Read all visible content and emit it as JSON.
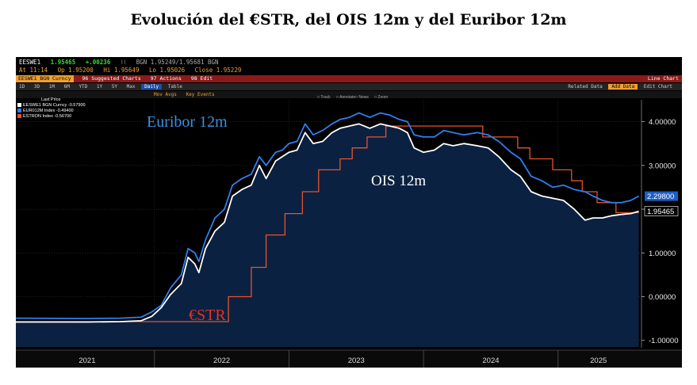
{
  "page": {
    "title": "Evolución del €STR, del OIS 12m y del Euribor 12m"
  },
  "terminal": {
    "ticker": "EESWE1",
    "last": "1.95465",
    "change": "+.00236",
    "bid_ask": "BGN 1.95249/1.95681 BGN",
    "at": "At 11:14",
    "open": "Op 1.95200",
    "high": "Hi 1.95649",
    "low": "Lo 1.95026",
    "close": "Close 1.95229",
    "menu_security": "EESWE1 BGN Curncy",
    "menu_suggested": "96 Suggested Charts",
    "menu_actions": "97 Actions",
    "menu_edit": "98 Edit",
    "menu_right": "Line Chart",
    "toolbar_periods": [
      "1D",
      "3D",
      "1M",
      "6M",
      "YTD",
      "1Y",
      "5Y",
      "Max",
      "Daily",
      "Table"
    ],
    "toolbar_right": [
      "Related Data",
      "Add Data",
      "Edit Chart"
    ],
    "toolbar2": [
      "Mov Avgs",
      "Key Events"
    ],
    "tools": [
      "Track",
      "Annotate",
      "News",
      "Zoom"
    ],
    "legend_header": "Last Price",
    "legend": [
      {
        "label": "EESWE1 BGN Curncy",
        "value": "-0.57900",
        "color": "#ffffff"
      },
      {
        "label": "EUR012M Index",
        "value": "-0.49400",
        "color": "#2e7ff0"
      },
      {
        "label": "ESTRON Index",
        "value": "-0.56700",
        "color": "#e8532b"
      }
    ]
  },
  "chart_data": {
    "type": "line",
    "x_ticks": [
      "2021",
      "2022",
      "2023",
      "2024",
      "2025"
    ],
    "y_ticks": [
      "4.00000",
      "3.00000",
      "2.00000",
      "1.00000",
      "0.00000",
      "-1.00000"
    ],
    "ylim": [
      -1.15,
      4.5
    ],
    "xlim": [
      2020.97,
      2025.62
    ],
    "annotations": [
      {
        "text": "Euribor 12m",
        "color": "#3d8fe0"
      },
      {
        "text": "OIS 12m",
        "color": "#ffffff"
      },
      {
        "text": "€STR",
        "color": "#e83020"
      }
    ],
    "last_values": [
      {
        "series": "EUR012M Index",
        "label": "2.29800",
        "value": 2.298,
        "color": "#2e7ff0"
      },
      {
        "series": "EESWE1 BGN Curncy",
        "label": "1.95465",
        "value": 1.95465,
        "color": "#ffffff"
      }
    ],
    "series": [
      {
        "name": "ESTRON Index",
        "color": "#e8532b",
        "points": [
          [
            2020.97,
            -0.57
          ],
          [
            2022.55,
            -0.57
          ],
          [
            2022.55,
            0.0
          ],
          [
            2022.72,
            0.0
          ],
          [
            2022.72,
            0.67
          ],
          [
            2022.83,
            0.67
          ],
          [
            2022.83,
            1.41
          ],
          [
            2022.97,
            1.41
          ],
          [
            2022.97,
            1.9
          ],
          [
            2023.1,
            1.9
          ],
          [
            2023.1,
            2.4
          ],
          [
            2023.22,
            2.4
          ],
          [
            2023.22,
            2.9
          ],
          [
            2023.38,
            2.9
          ],
          [
            2023.38,
            3.15
          ],
          [
            2023.47,
            3.15
          ],
          [
            2023.47,
            3.4
          ],
          [
            2023.58,
            3.4
          ],
          [
            2023.58,
            3.65
          ],
          [
            2023.72,
            3.65
          ],
          [
            2023.72,
            3.9
          ],
          [
            2024.44,
            3.9
          ],
          [
            2024.44,
            3.65
          ],
          [
            2024.7,
            3.65
          ],
          [
            2024.7,
            3.4
          ],
          [
            2024.79,
            3.4
          ],
          [
            2024.79,
            3.15
          ],
          [
            2024.96,
            3.15
          ],
          [
            2024.96,
            2.9
          ],
          [
            2025.1,
            2.9
          ],
          [
            2025.1,
            2.65
          ],
          [
            2025.18,
            2.65
          ],
          [
            2025.18,
            2.4
          ],
          [
            2025.29,
            2.4
          ],
          [
            2025.29,
            2.15
          ],
          [
            2025.43,
            2.15
          ],
          [
            2025.43,
            1.92
          ],
          [
            2025.6,
            1.92
          ]
        ]
      },
      {
        "name": "EUR012M Index",
        "color": "#2e7ff0",
        "points": [
          [
            2020.97,
            -0.49
          ],
          [
            2021.5,
            -0.5
          ],
          [
            2021.75,
            -0.49
          ],
          [
            2021.9,
            -0.47
          ],
          [
            2021.98,
            -0.35
          ],
          [
            2022.05,
            -0.2
          ],
          [
            2022.12,
            0.2
          ],
          [
            2022.2,
            0.5
          ],
          [
            2022.25,
            1.1
          ],
          [
            2022.3,
            1.0
          ],
          [
            2022.33,
            0.8
          ],
          [
            2022.38,
            1.3
          ],
          [
            2022.45,
            1.8
          ],
          [
            2022.52,
            2.0
          ],
          [
            2022.58,
            2.55
          ],
          [
            2022.65,
            2.7
          ],
          [
            2022.72,
            2.8
          ],
          [
            2022.78,
            3.2
          ],
          [
            2022.83,
            3.0
          ],
          [
            2022.9,
            3.3
          ],
          [
            2022.95,
            3.35
          ],
          [
            2023.0,
            3.5
          ],
          [
            2023.06,
            3.55
          ],
          [
            2023.12,
            3.95
          ],
          [
            2023.18,
            3.7
          ],
          [
            2023.25,
            3.8
          ],
          [
            2023.32,
            3.95
          ],
          [
            2023.38,
            4.05
          ],
          [
            2023.45,
            4.1
          ],
          [
            2023.52,
            4.2
          ],
          [
            2023.6,
            4.1
          ],
          [
            2023.68,
            4.2
          ],
          [
            2023.75,
            4.15
          ],
          [
            2023.82,
            4.05
          ],
          [
            2023.88,
            4.0
          ],
          [
            2023.93,
            3.7
          ],
          [
            2024.0,
            3.65
          ],
          [
            2024.08,
            3.65
          ],
          [
            2024.15,
            3.8
          ],
          [
            2024.22,
            3.75
          ],
          [
            2024.3,
            3.7
          ],
          [
            2024.4,
            3.75
          ],
          [
            2024.48,
            3.7
          ],
          [
            2024.56,
            3.55
          ],
          [
            2024.65,
            3.3
          ],
          [
            2024.72,
            3.15
          ],
          [
            2024.8,
            2.75
          ],
          [
            2024.88,
            2.65
          ],
          [
            2024.96,
            2.5
          ],
          [
            2025.04,
            2.55
          ],
          [
            2025.12,
            2.45
          ],
          [
            2025.2,
            2.4
          ],
          [
            2025.26,
            2.3
          ],
          [
            2025.33,
            2.2
          ],
          [
            2025.4,
            2.15
          ],
          [
            2025.47,
            2.15
          ],
          [
            2025.54,
            2.2
          ],
          [
            2025.6,
            2.3
          ]
        ]
      },
      {
        "name": "EESWE1 BGN Curncy",
        "color": "#ffffff",
        "points": [
          [
            2020.97,
            -0.58
          ],
          [
            2021.5,
            -0.58
          ],
          [
            2021.75,
            -0.57
          ],
          [
            2021.9,
            -0.55
          ],
          [
            2021.98,
            -0.45
          ],
          [
            2022.05,
            -0.25
          ],
          [
            2022.12,
            0.05
          ],
          [
            2022.2,
            0.3
          ],
          [
            2022.25,
            0.9
          ],
          [
            2022.3,
            0.75
          ],
          [
            2022.33,
            0.55
          ],
          [
            2022.38,
            1.1
          ],
          [
            2022.45,
            1.5
          ],
          [
            2022.52,
            1.7
          ],
          [
            2022.58,
            2.3
          ],
          [
            2022.65,
            2.45
          ],
          [
            2022.72,
            2.55
          ],
          [
            2022.78,
            3.0
          ],
          [
            2022.83,
            2.7
          ],
          [
            2022.9,
            3.1
          ],
          [
            2022.95,
            3.2
          ],
          [
            2023.0,
            3.3
          ],
          [
            2023.06,
            3.35
          ],
          [
            2023.12,
            3.75
          ],
          [
            2023.18,
            3.5
          ],
          [
            2023.25,
            3.55
          ],
          [
            2023.32,
            3.75
          ],
          [
            2023.38,
            3.85
          ],
          [
            2023.45,
            3.9
          ],
          [
            2023.52,
            3.95
          ],
          [
            2023.6,
            3.85
          ],
          [
            2023.68,
            3.95
          ],
          [
            2023.75,
            3.9
          ],
          [
            2023.82,
            3.85
          ],
          [
            2023.88,
            3.75
          ],
          [
            2023.93,
            3.4
          ],
          [
            2024.0,
            3.3
          ],
          [
            2024.08,
            3.35
          ],
          [
            2024.15,
            3.5
          ],
          [
            2024.22,
            3.45
          ],
          [
            2024.3,
            3.5
          ],
          [
            2024.4,
            3.45
          ],
          [
            2024.48,
            3.4
          ],
          [
            2024.56,
            3.2
          ],
          [
            2024.65,
            2.9
          ],
          [
            2024.72,
            2.75
          ],
          [
            2024.8,
            2.4
          ],
          [
            2024.88,
            2.3
          ],
          [
            2024.96,
            2.25
          ],
          [
            2025.04,
            2.2
          ],
          [
            2025.12,
            2.0
          ],
          [
            2025.2,
            1.75
          ],
          [
            2025.26,
            1.8
          ],
          [
            2025.33,
            1.8
          ],
          [
            2025.4,
            1.85
          ],
          [
            2025.47,
            1.88
          ],
          [
            2025.54,
            1.9
          ],
          [
            2025.6,
            1.95
          ]
        ]
      }
    ]
  }
}
